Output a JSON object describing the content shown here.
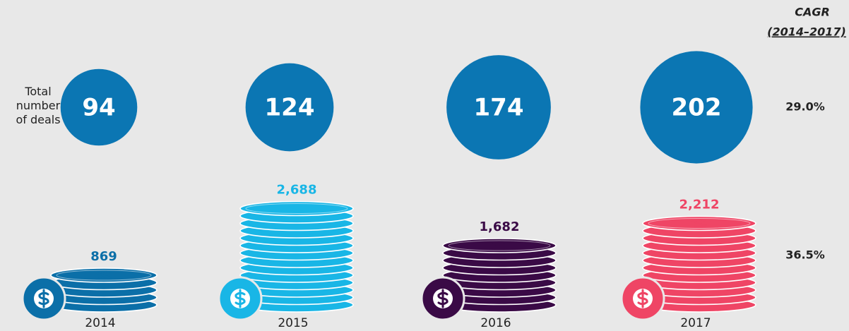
{
  "chart_data": {
    "type": "bubble-coins",
    "categories": [
      "2014",
      "2015",
      "2016",
      "2017"
    ],
    "series": [
      {
        "name": "Total number of deals",
        "color": "#0b76b3",
        "values": [
          94,
          124,
          174,
          202
        ]
      },
      {
        "colors": [
          "#0b6fa8",
          "#19b6e6",
          "#3a0a46",
          "#ef4565"
        ],
        "values": [
          869,
          2688,
          1682,
          2212
        ],
        "value_labels": [
          "869",
          "2,688",
          "1,682",
          "2,212"
        ]
      }
    ],
    "cagr_title": "CAGR",
    "cagr_period": "(2014–2017)",
    "cagr": [
      {
        "value": 29.0,
        "label": "29.0%"
      },
      {
        "value": 36.5,
        "label": "36.5%"
      }
    ]
  }
}
